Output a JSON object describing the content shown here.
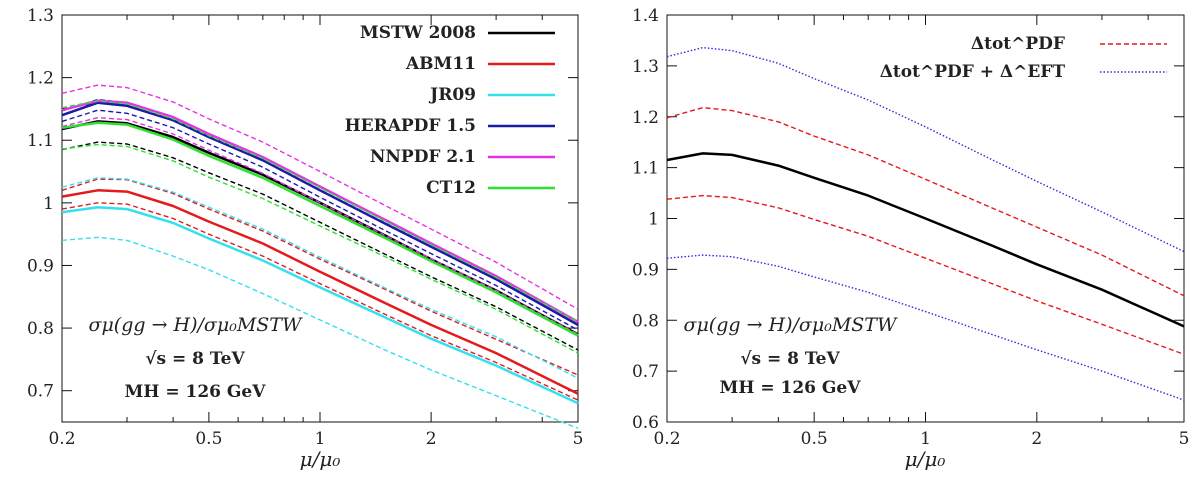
{
  "chart_data": [
    {
      "type": "line",
      "xscale": "log",
      "xlim": [
        0.2,
        5
      ],
      "ylim": [
        0.65,
        1.3
      ],
      "xticks": [
        0.2,
        0.5,
        1,
        2,
        5
      ],
      "xtick_labels": [
        "0.2",
        "0.5",
        "1",
        "2",
        "5"
      ],
      "yticks": [
        0.7,
        0.8,
        0.9,
        1.0,
        1.1,
        1.2,
        1.3
      ],
      "ytick_labels": [
        "0.7",
        "0.8",
        "0.9",
        "1",
        "1.1",
        "1.2",
        "1.3"
      ],
      "xlabel": "μ/μ₀",
      "legend_position": "top-right",
      "annotations": [
        "σμ(gg → H)/σμ₀MSTW",
        "√s = 8 TeV",
        "MH = 126 GeV"
      ],
      "series": [
        {
          "name": "MSTW 2008",
          "color": "#000000",
          "dash": "solid",
          "x": [
            0.2,
            0.25,
            0.3,
            0.4,
            0.5,
            0.7,
            1,
            1.5,
            2,
            3,
            5
          ],
          "y": [
            1.118,
            1.13,
            1.127,
            1.105,
            1.08,
            1.045,
            1.0,
            0.948,
            0.91,
            0.86,
            0.79
          ]
        },
        {
          "name": "MSTW 2008 upper",
          "color": "#000000",
          "dash": "dashed",
          "x": [
            0.2,
            0.25,
            0.3,
            0.4,
            0.5,
            0.7,
            1,
            1.5,
            2,
            3,
            5
          ],
          "y": [
            1.15,
            1.16,
            1.156,
            1.133,
            1.107,
            1.072,
            1.026,
            0.973,
            0.934,
            0.882,
            0.81
          ]
        },
        {
          "name": "MSTW 2008 lower",
          "color": "#000000",
          "dash": "dashed",
          "x": [
            0.2,
            0.25,
            0.3,
            0.4,
            0.5,
            0.7,
            1,
            1.5,
            2,
            3,
            5
          ],
          "y": [
            1.085,
            1.097,
            1.094,
            1.072,
            1.048,
            1.014,
            0.969,
            0.918,
            0.882,
            0.834,
            0.765
          ]
        },
        {
          "name": "ABM11",
          "color": "#e41a1c",
          "dash": "solid",
          "x": [
            0.2,
            0.25,
            0.3,
            0.4,
            0.5,
            0.7,
            1,
            1.5,
            2,
            3,
            5
          ],
          "y": [
            1.01,
            1.02,
            1.018,
            0.995,
            0.97,
            0.935,
            0.89,
            0.84,
            0.805,
            0.76,
            0.695
          ]
        },
        {
          "name": "ABM11 upper",
          "color": "#e41a1c",
          "dash": "dashed",
          "x": [
            0.2,
            0.25,
            0.3,
            0.4,
            0.5,
            0.7,
            1,
            1.5,
            2,
            3,
            5
          ],
          "y": [
            1.02,
            1.038,
            1.037,
            1.015,
            0.99,
            0.955,
            0.91,
            0.862,
            0.827,
            0.782,
            0.725
          ]
        },
        {
          "name": "ABM11 lower",
          "color": "#e41a1c",
          "dash": "dashed",
          "x": [
            0.2,
            0.25,
            0.3,
            0.4,
            0.5,
            0.7,
            1,
            1.5,
            2,
            3,
            5
          ],
          "y": [
            0.99,
            1.0,
            0.998,
            0.975,
            0.95,
            0.915,
            0.871,
            0.822,
            0.788,
            0.745,
            0.685
          ]
        },
        {
          "name": "JR09",
          "color": "#33e0f0",
          "dash": "solid",
          "x": [
            0.2,
            0.25,
            0.3,
            0.4,
            0.5,
            0.7,
            1,
            1.5,
            2,
            3,
            5
          ],
          "y": [
            0.985,
            0.993,
            0.99,
            0.968,
            0.943,
            0.908,
            0.865,
            0.817,
            0.783,
            0.74,
            0.68
          ]
        },
        {
          "name": "JR09 upper",
          "color": "#33e0f0",
          "dash": "dashed",
          "x": [
            0.2,
            0.25,
            0.3,
            0.4,
            0.5,
            0.7,
            1,
            1.5,
            2,
            3,
            5
          ],
          "y": [
            1.025,
            1.04,
            1.038,
            1.017,
            0.993,
            0.958,
            0.913,
            0.864,
            0.83,
            0.786,
            0.72
          ]
        },
        {
          "name": "JR09 lower",
          "color": "#33e0f0",
          "dash": "dashed",
          "x": [
            0.2,
            0.25,
            0.3,
            0.4,
            0.5,
            0.7,
            1,
            1.5,
            2,
            3,
            5
          ],
          "y": [
            0.94,
            0.945,
            0.94,
            0.915,
            0.893,
            0.855,
            0.813,
            0.765,
            0.733,
            0.692,
            0.64
          ]
        },
        {
          "name": "HERAPDF 1.5",
          "color": "#1a1aa8",
          "dash": "solid",
          "x": [
            0.2,
            0.25,
            0.3,
            0.4,
            0.5,
            0.7,
            1,
            1.5,
            2,
            3,
            5
          ],
          "y": [
            1.14,
            1.16,
            1.155,
            1.132,
            1.105,
            1.068,
            1.02,
            0.967,
            0.93,
            0.878,
            0.805
          ]
        },
        {
          "name": "HERAPDF 1.5 upper",
          "color": "#1a1aa8",
          "dash": "dashed",
          "x": [
            0.2,
            0.25,
            0.3,
            0.4,
            0.5,
            0.7,
            1,
            1.5,
            2,
            3,
            5
          ],
          "y": [
            1.147,
            1.165,
            1.16,
            1.137,
            1.11,
            1.073,
            1.025,
            0.972,
            0.935,
            0.883,
            0.81
          ]
        },
        {
          "name": "HERAPDF 1.5 lower",
          "color": "#1a1aa8",
          "dash": "dashed",
          "x": [
            0.2,
            0.25,
            0.3,
            0.4,
            0.5,
            0.7,
            1,
            1.5,
            2,
            3,
            5
          ],
          "y": [
            1.13,
            1.148,
            1.143,
            1.12,
            1.094,
            1.057,
            1.009,
            0.956,
            0.919,
            0.868,
            0.797
          ]
        },
        {
          "name": "NNPDF 2.1",
          "color": "#e632e6",
          "dash": "solid",
          "x": [
            0.2,
            0.25,
            0.3,
            0.4,
            0.5,
            0.7,
            1,
            1.5,
            2,
            3,
            5
          ],
          "y": [
            1.148,
            1.163,
            1.16,
            1.137,
            1.11,
            1.073,
            1.026,
            0.973,
            0.935,
            0.883,
            0.81
          ]
        },
        {
          "name": "NNPDF 2.1 upper",
          "color": "#e632e6",
          "dash": "dashed",
          "x": [
            0.2,
            0.25,
            0.3,
            0.4,
            0.5,
            0.7,
            1,
            1.5,
            2,
            3,
            5
          ],
          "y": [
            1.175,
            1.188,
            1.184,
            1.161,
            1.134,
            1.097,
            1.05,
            0.996,
            0.958,
            0.905,
            0.83
          ]
        },
        {
          "name": "NNPDF 2.1 lower",
          "color": "#e632e6",
          "dash": "dashed",
          "x": [
            0.2,
            0.25,
            0.3,
            0.4,
            0.5,
            0.7,
            1,
            1.5,
            2,
            3,
            5
          ],
          "y": [
            1.122,
            1.136,
            1.133,
            1.11,
            1.084,
            1.047,
            1.0,
            0.948,
            0.911,
            0.86,
            0.79
          ]
        },
        {
          "name": "CT12",
          "color": "#2fe02f",
          "dash": "solid",
          "x": [
            0.2,
            0.25,
            0.3,
            0.4,
            0.5,
            0.7,
            1,
            1.5,
            2,
            3,
            5
          ],
          "y": [
            1.12,
            1.128,
            1.125,
            1.101,
            1.075,
            1.04,
            0.995,
            0.944,
            0.907,
            0.857,
            0.788
          ]
        },
        {
          "name": "CT12 upper",
          "color": "#2fe02f",
          "dash": "dashed",
          "x": [
            0.2,
            0.25,
            0.3,
            0.4,
            0.5,
            0.7,
            1,
            1.5,
            2,
            3,
            5
          ],
          "y": [
            1.152,
            1.163,
            1.158,
            1.134,
            1.107,
            1.071,
            1.024,
            0.971,
            0.933,
            0.881,
            0.81
          ]
        },
        {
          "name": "CT12 lower",
          "color": "#2fe02f",
          "dash": "dashed",
          "x": [
            0.2,
            0.25,
            0.3,
            0.4,
            0.5,
            0.7,
            1,
            1.5,
            2,
            3,
            5
          ],
          "y": [
            1.086,
            1.093,
            1.09,
            1.067,
            1.041,
            1.007,
            0.963,
            0.914,
            0.878,
            0.83,
            0.76
          ]
        }
      ]
    },
    {
      "type": "line",
      "xscale": "log",
      "xlim": [
        0.2,
        5
      ],
      "ylim": [
        0.6,
        1.4
      ],
      "xticks": [
        0.2,
        0.5,
        1,
        2,
        5
      ],
      "xtick_labels": [
        "0.2",
        "0.5",
        "1",
        "2",
        "5"
      ],
      "yticks": [
        0.6,
        0.7,
        0.8,
        0.9,
        1.0,
        1.1,
        1.2,
        1.3,
        1.4
      ],
      "ytick_labels": [
        "0.6",
        "0.7",
        "0.8",
        "0.9",
        "1",
        "1.1",
        "1.2",
        "1.3",
        "1.4"
      ],
      "xlabel": "μ/μ₀",
      "legend_position": "top-right",
      "annotations": [
        "σμ(gg → H)/σμ₀MSTW",
        "√s = 8 TeV",
        "MH = 126 GeV"
      ],
      "legend": [
        "Δtot^PDF",
        "Δtot^PDF + Δ^EFT"
      ],
      "series": [
        {
          "name": "",
          "color": "#000000",
          "dash": "solid",
          "x": [
            0.2,
            0.25,
            0.3,
            0.4,
            0.5,
            0.7,
            1,
            1.5,
            2,
            3,
            5
          ],
          "y": [
            1.115,
            1.128,
            1.125,
            1.104,
            1.08,
            1.045,
            1.0,
            0.948,
            0.91,
            0.86,
            0.788
          ]
        },
        {
          "name": "Δtot^PDF upper",
          "color": "#e41a1c",
          "dash": "dashed",
          "x": [
            0.2,
            0.25,
            0.3,
            0.4,
            0.5,
            0.7,
            1,
            1.5,
            2,
            3,
            5
          ],
          "y": [
            1.198,
            1.218,
            1.212,
            1.19,
            1.162,
            1.125,
            1.077,
            1.022,
            0.983,
            0.928,
            0.848
          ]
        },
        {
          "name": "Δtot^PDF lower",
          "color": "#e41a1c",
          "dash": "dashed",
          "x": [
            0.2,
            0.25,
            0.3,
            0.4,
            0.5,
            0.7,
            1,
            1.5,
            2,
            3,
            5
          ],
          "y": [
            1.038,
            1.045,
            1.041,
            1.021,
            0.998,
            0.965,
            0.922,
            0.873,
            0.838,
            0.792,
            0.733
          ]
        },
        {
          "name": "Δtot^PDF + Δ^EFT upper",
          "color": "#2b2be0",
          "dash": "dotted",
          "x": [
            0.2,
            0.25,
            0.3,
            0.4,
            0.5,
            0.7,
            1,
            1.5,
            2,
            3,
            5
          ],
          "y": [
            1.318,
            1.336,
            1.33,
            1.305,
            1.275,
            1.233,
            1.18,
            1.117,
            1.073,
            1.013,
            0.935
          ]
        },
        {
          "name": "Δtot^PDF + Δ^EFT lower",
          "color": "#2b2be0",
          "dash": "dotted",
          "x": [
            0.2,
            0.25,
            0.3,
            0.4,
            0.5,
            0.7,
            1,
            1.5,
            2,
            3,
            5
          ],
          "y": [
            0.922,
            0.928,
            0.925,
            0.906,
            0.885,
            0.855,
            0.817,
            0.773,
            0.742,
            0.7,
            0.643
          ]
        }
      ]
    }
  ]
}
